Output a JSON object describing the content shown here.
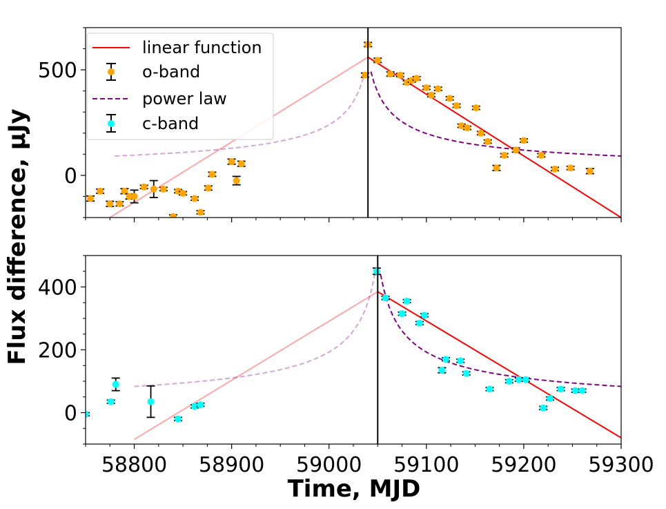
{
  "chart_data": [
    {
      "type": "scatter",
      "panel": "top",
      "xlim": [
        58750,
        59300
      ],
      "ylim": [
        -200,
        700
      ],
      "yticks": [
        0,
        500
      ],
      "ytick_labels": [
        "0",
        "500"
      ],
      "peak_marker_x": 59040,
      "legend": {
        "placement": "top-left",
        "entries": [
          "linear function",
          "o-band",
          "power law",
          "c-band"
        ]
      },
      "series": [
        {
          "name": "o-band",
          "kind": "points",
          "color": "#ffa500",
          "x": [
            58755,
            58765,
            58775,
            58785,
            58790,
            58795,
            58800,
            58810,
            58820,
            58830,
            58840,
            58845,
            58850,
            58862,
            58868,
            58876,
            58880,
            58900,
            58905,
            58910,
            59037,
            59040,
            59050,
            59063,
            59073,
            59080,
            59085,
            59090,
            59100,
            59105,
            59112,
            59124,
            59131,
            59136,
            59142,
            59151,
            59156,
            59163,
            59172,
            59180,
            59192,
            59200,
            59218,
            59232,
            59248,
            59268
          ],
          "y": [
            -110,
            -75,
            -135,
            -135,
            -75,
            -100,
            -100,
            -55,
            -65,
            -65,
            -195,
            -75,
            -85,
            -110,
            -175,
            -60,
            5,
            65,
            -25,
            55,
            475,
            620,
            545,
            480,
            475,
            440,
            450,
            460,
            415,
            380,
            410,
            365,
            330,
            235,
            225,
            320,
            200,
            160,
            35,
            95,
            120,
            165,
            95,
            30,
            35,
            20
          ],
          "err": [
            12,
            10,
            12,
            10,
            12,
            12,
            30,
            8,
            40,
            8,
            8,
            8,
            8,
            8,
            8,
            10,
            10,
            12,
            20,
            12,
            10,
            10,
            10,
            10,
            8,
            8,
            8,
            8,
            8,
            8,
            8,
            8,
            8,
            8,
            8,
            8,
            8,
            8,
            12,
            8,
            10,
            8,
            8,
            8,
            8,
            12
          ]
        },
        {
          "name": "linear function",
          "kind": "line",
          "color": "#ff0000",
          "segments": [
            {
              "x": [
                58775,
                59040
              ],
              "y": [
                -200,
                560
              ],
              "alpha": 0.35
            },
            {
              "x": [
                59040,
                59300
              ],
              "y": [
                560,
                -200
              ],
              "alpha": 1
            }
          ]
        },
        {
          "name": "power law",
          "kind": "line",
          "style": "dashed",
          "color": "#800080",
          "peak": 59040,
          "peak_y": 560,
          "left_range": [
            58780,
            59037
          ],
          "right_range": [
            59043,
            59300
          ],
          "left_alpha": 0.35,
          "right_alpha": 1
        }
      ]
    },
    {
      "type": "scatter",
      "panel": "bottom",
      "xlabel": "Time, MJD",
      "ylabel": "Flux difference, μJy",
      "xlim": [
        58750,
        59300
      ],
      "ylim": [
        -100,
        500
      ],
      "xticks": [
        58800,
        58900,
        59000,
        59100,
        59200,
        59300
      ],
      "xtick_labels": [
        "58800",
        "58900",
        "59000",
        "59100",
        "59200",
        "59300"
      ],
      "yticks": [
        0,
        200,
        400
      ],
      "ytick_labels": [
        "0",
        "200",
        "400"
      ],
      "peak_marker_x": 59050,
      "series": [
        {
          "name": "c-band",
          "kind": "points",
          "color": "#00ffff",
          "x": [
            58750,
            58776,
            58781,
            58817,
            58845,
            58862,
            58868,
            59049,
            59058,
            59075,
            59080,
            59093,
            59098,
            59116,
            59120,
            59135,
            59141,
            59165,
            59185,
            59195,
            59202,
            59220,
            59227,
            59238,
            59253,
            59260
          ],
          "y": [
            -5,
            35,
            90,
            35,
            -20,
            20,
            25,
            450,
            365,
            315,
            355,
            285,
            310,
            135,
            170,
            165,
            125,
            75,
            100,
            105,
            105,
            15,
            45,
            75,
            70,
            70
          ],
          "err": [
            5,
            5,
            20,
            50,
            5,
            5,
            5,
            10,
            5,
            5,
            5,
            5,
            5,
            8,
            5,
            5,
            5,
            5,
            5,
            5,
            5,
            5,
            5,
            5,
            5,
            5
          ]
        },
        {
          "name": "linear function",
          "kind": "line",
          "color": "#ff0000",
          "segments": [
            {
              "x": [
                58800,
                59050
              ],
              "y": [
                -85,
                385
              ],
              "alpha": 0.35
            },
            {
              "x": [
                59050,
                59300
              ],
              "y": [
                385,
                -80
              ],
              "alpha": 1
            }
          ]
        },
        {
          "name": "power law",
          "kind": "line",
          "style": "dashed",
          "color": "#800080",
          "peak": 59050,
          "peak_y": 500,
          "left_range": [
            58800,
            59047
          ],
          "right_range": [
            59053,
            59300
          ],
          "left_alpha": 0.35,
          "right_alpha": 1
        }
      ]
    }
  ]
}
